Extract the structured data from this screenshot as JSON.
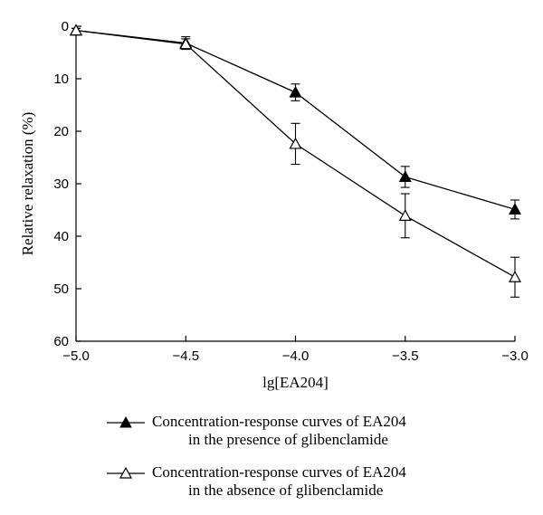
{
  "chart_data": {
    "type": "line",
    "xlabel": "lg[EA204]",
    "ylabel": "Relative relaxation (%)",
    "xlim": [
      -5.0,
      -3.0
    ],
    "ylim": [
      0,
      60
    ],
    "y_inverted": true,
    "x_ticks": [
      "-5.0",
      "-4.5",
      "-4.0",
      "-3.5",
      "-3.0"
    ],
    "y_ticks": [
      "0",
      "10",
      "20",
      "30",
      "40",
      "50",
      "60"
    ],
    "grid": false,
    "legend_position": "bottom",
    "series": [
      {
        "name": "Concentration-response curves of EA204 in the presence of glibenclamide",
        "legend_line1": "Concentration-response curves of EA204",
        "legend_line2": "in the presence of glibenclamide",
        "marker": "filled-triangle",
        "x": [
          -5.0,
          -4.5,
          -4.0,
          -3.5,
          -3.0
        ],
        "y": [
          0.8,
          3.2,
          12.6,
          28.7,
          34.9
        ],
        "err": [
          0.4,
          1.2,
          1.6,
          2.0,
          1.8
        ]
      },
      {
        "name": "Concentration-response curves of EA204 in the absence of glibenclamide",
        "legend_line1": "Concentration-response curves of EA204",
        "legend_line2": "in the absence of glibenclamide",
        "marker": "open-triangle",
        "x": [
          -5.0,
          -4.5,
          -4.0,
          -3.5,
          -3.0
        ],
        "y": [
          0.8,
          3.4,
          22.4,
          36.1,
          47.8
        ],
        "err": [
          0.4,
          1.0,
          3.9,
          4.2,
          3.8
        ]
      }
    ]
  }
}
